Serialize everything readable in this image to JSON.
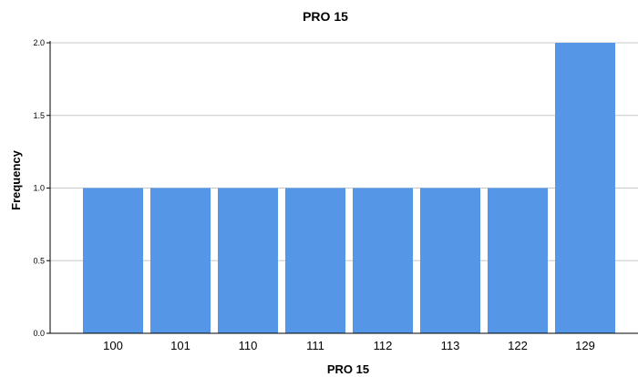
{
  "chart_data": {
    "type": "bar",
    "title": "PRO 15",
    "xlabel": "PRO 15",
    "ylabel": "Frequency",
    "categories": [
      "100",
      "101",
      "110",
      "111",
      "112",
      "113",
      "122",
      "129"
    ],
    "values": [
      1,
      1,
      1,
      1,
      1,
      1,
      1,
      2
    ],
    "ylim": [
      0,
      2
    ],
    "yticks": [
      "0.0",
      "0.5",
      "1.0",
      "1.5",
      "2.0"
    ],
    "grid": "horizontal",
    "bar_color": "#5596e6"
  }
}
